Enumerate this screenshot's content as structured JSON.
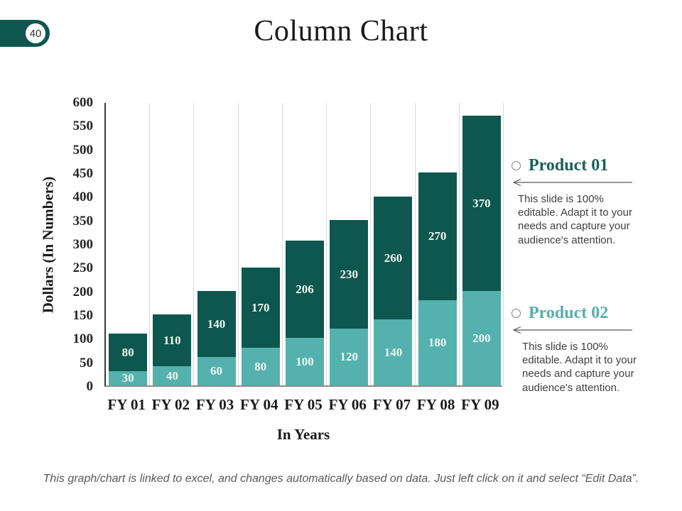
{
  "slide": {
    "number": "40",
    "title": "Column Chart",
    "footnote": "This graph/chart is linked to excel, and changes automatically based on data. Just left click on it and select “Edit Data”."
  },
  "chart_data": {
    "type": "bar",
    "stacked": true,
    "title": "Column Chart",
    "xlabel": "In Years",
    "ylabel": "Dollars (In Numbers)",
    "categories": [
      "FY 01",
      "FY 02",
      "FY 03",
      "FY 04",
      "FY 05",
      "FY 06",
      "FY 07",
      "FY 08",
      "FY 09"
    ],
    "series": [
      {
        "name": "Product 02",
        "position": "bottom",
        "color": "#54b1ad",
        "values": [
          30,
          40,
          60,
          80,
          100,
          120,
          140,
          180,
          200
        ]
      },
      {
        "name": "Product 01",
        "position": "top",
        "color": "#0e574f",
        "values": [
          80,
          110,
          140,
          170,
          206,
          230,
          260,
          270,
          370
        ]
      }
    ],
    "totals": [
      110,
      150,
      200,
      250,
      306,
      350,
      400,
      450,
      570
    ],
    "ylim": [
      0,
      600
    ],
    "ytick_step": 50,
    "grid": "vertical-only",
    "value_labels": "inside-center",
    "legend_position": "right-panel"
  },
  "panel": {
    "product01": {
      "title": "Product 01",
      "color": "#1a5f5a",
      "description": "This slide is 100% editable. Adapt it to your needs and capture your audience's attention."
    },
    "product02": {
      "title": "Product 02",
      "color": "#56aeab",
      "description": "This slide is 100% editable. Adapt it to your needs and capture your audience's attention."
    }
  },
  "colors": {
    "badge": "#0e574f",
    "bar_dark": "#0e574f",
    "bar_light": "#54b1ad",
    "gridline": "#d9d9d9",
    "arrow": "#595959"
  }
}
